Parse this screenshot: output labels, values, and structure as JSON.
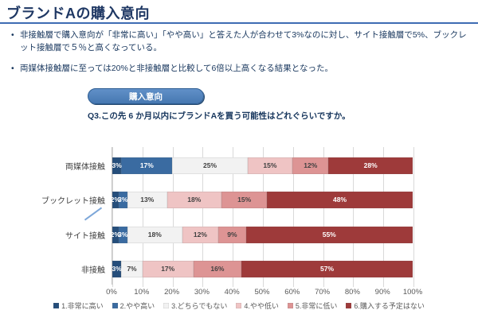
{
  "header": {
    "title": "ブランドAの購入意向"
  },
  "bullets": [
    "非接触層で購入意向が「非常に高い」「やや高い」と答えた人が合わせて3%なのに対し、サイト接触層で5%、ブックレット接触層で５％と高くなっている。",
    "両媒体接触層に至っては20%と非接触層と比較して6倍以上高くなる結果となった。"
  ],
  "button": {
    "label": "購入意向"
  },
  "question": "Q3.この先 6 か月以内にブランドAを買う可能性はどれぐらいですか。",
  "colors": {
    "title": "#1f3864",
    "underline": "#3e6cb3",
    "button_fill": "#4678b1",
    "axis_text": "#595959",
    "dark_label": "#404040",
    "light_label": "#ffffff"
  },
  "chart_data": {
    "type": "bar",
    "orientation": "horizontal-stacked",
    "title": "",
    "xlabel": "",
    "ylabel": "",
    "xlim": [
      0,
      100
    ],
    "grid": true,
    "legend_position": "bottom",
    "categories": [
      "両媒体接触",
      "ブックレット接触",
      "サイト接触",
      "非接触"
    ],
    "series": [
      {
        "name": "1.非常に高い",
        "color": "#254e7b",
        "values": [
          3,
          2,
          2,
          3
        ]
      },
      {
        "name": "2.やや高い",
        "color": "#3a6ba1",
        "values": [
          17,
          3,
          3,
          0
        ]
      },
      {
        "name": "3.どちらでもない",
        "color": "#f2f2f2",
        "values": [
          25,
          13,
          18,
          7
        ]
      },
      {
        "name": "4.やや低い",
        "color": "#efc4c4",
        "values": [
          15,
          18,
          12,
          17
        ]
      },
      {
        "name": "5.非常に低い",
        "color": "#dd9494",
        "values": [
          12,
          15,
          9,
          16
        ]
      },
      {
        "name": "6.購入する予定はない",
        "color": "#9e3a3a",
        "values": [
          28,
          48,
          55,
          57
        ]
      }
    ],
    "x_ticks": [
      "0%",
      "10%",
      "20%",
      "30%",
      "40%",
      "50%",
      "60%",
      "70%",
      "80%",
      "90%",
      "100%"
    ],
    "data_label_suffix": "%"
  }
}
